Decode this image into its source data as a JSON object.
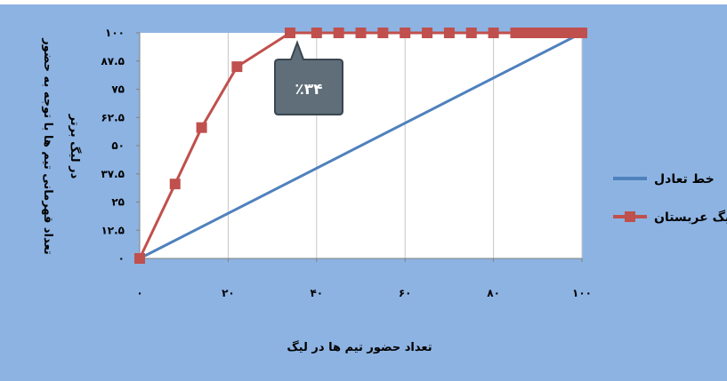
{
  "chart_data": {
    "type": "line",
    "xlabel": "تعداد حضور تیم ها در لیگ",
    "ylabel": "تعداد قهرمانی تیم ها با توجه به حضور در لیگ برتر",
    "xlim": [
      0,
      100
    ],
    "ylim": [
      0,
      100
    ],
    "x_ticks": [
      0,
      20,
      40,
      60,
      80,
      100
    ],
    "x_tick_labels": [
      "۰",
      "۲۰",
      "۴۰",
      "۶۰",
      "۸۰",
      "۱۰۰"
    ],
    "y_ticks": [
      0,
      12.5,
      25,
      37.5,
      50,
      62.5,
      75,
      87.5,
      100
    ],
    "y_tick_labels": [
      "۰",
      "۱۲.۵",
      "۲۵",
      "۳۷.۵",
      "۵۰",
      "۶۲.۵",
      "۷۵",
      "۸۷.۵",
      "۱۰۰"
    ],
    "grid": {
      "vertical": true,
      "horizontal": false
    },
    "legend_position": "right",
    "series": [
      {
        "name": "خط تعادل",
        "color": "#4f81bd",
        "marker": "none",
        "x": [
          0,
          100
        ],
        "y": [
          0,
          100
        ]
      },
      {
        "name": "لیگ عربستان",
        "color": "#c0504d",
        "marker": "square",
        "x": [
          0,
          8,
          14,
          22,
          34,
          40,
          45,
          50,
          55,
          60,
          65,
          70,
          75,
          80,
          85,
          86,
          87,
          88,
          89,
          90,
          91,
          92,
          93,
          94,
          95,
          96,
          97,
          98,
          99,
          100
        ],
        "y": [
          0,
          33,
          58,
          85,
          100,
          100,
          100,
          100,
          100,
          100,
          100,
          100,
          100,
          100,
          100,
          100,
          100,
          100,
          100,
          100,
          100,
          100,
          100,
          100,
          100,
          100,
          100,
          100,
          100,
          100
        ]
      }
    ],
    "annotation": {
      "text": "٪۳۴",
      "x": 34,
      "y": 100
    }
  },
  "colors": {
    "chart_background": "#8db3e2",
    "plot_background": "#ffffff",
    "gridline": "#c6c6c6",
    "callout_fill": "#5f6e79"
  }
}
